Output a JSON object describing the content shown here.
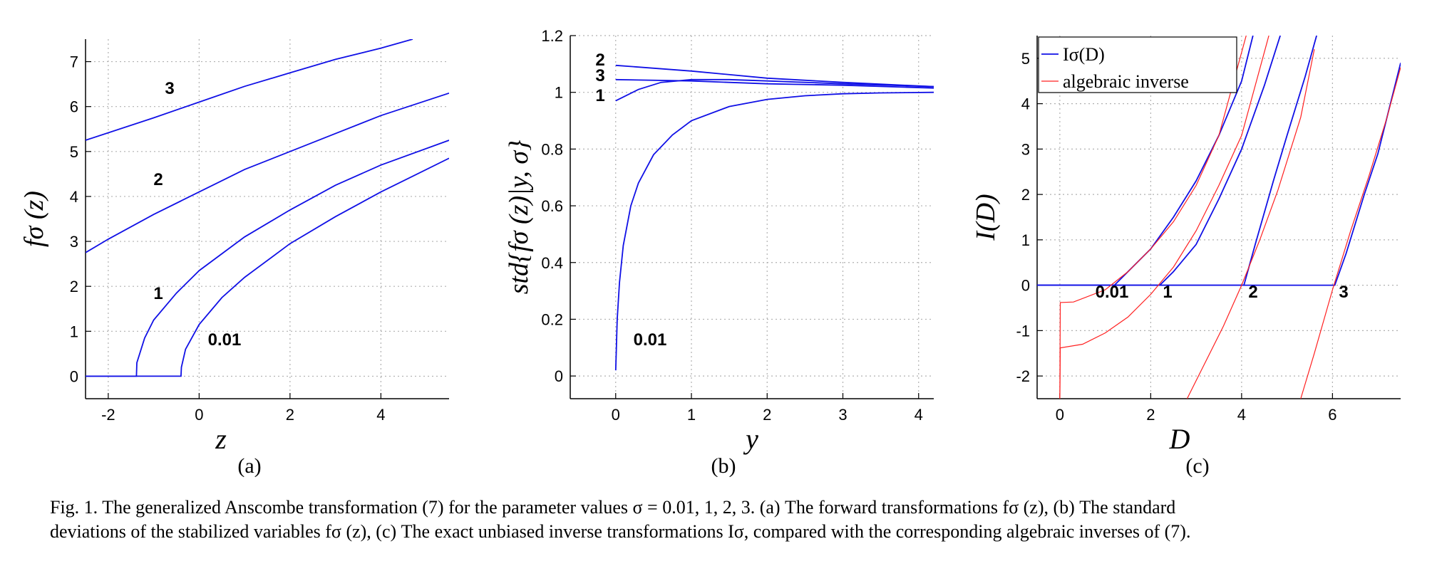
{
  "figure": {
    "panels": [
      {
        "id": "a",
        "label": "(a)",
        "xlabel": "z",
        "ylabel": "fσ (z)"
      },
      {
        "id": "b",
        "label": "(b)",
        "xlabel": "y",
        "ylabel": "std{fσ (z)|y, σ}"
      },
      {
        "id": "c",
        "label": "(c)",
        "xlabel": "D",
        "ylabel": "I(D)",
        "legend": [
          "Iσ(D)",
          "algebraic inverse"
        ]
      }
    ],
    "colors": {
      "curve": "#1010e6",
      "inverse": "#ff2020",
      "grid": "#b0b0b0"
    }
  },
  "chart_data": [
    {
      "type": "line",
      "panel": "a",
      "xlabel": "z",
      "ylabel": "fσ (z)",
      "xlim": [
        -2.5,
        5.5
      ],
      "ylim": [
        -0.5,
        7.5
      ],
      "xticks": [
        -2,
        0,
        2,
        4
      ],
      "yticks": [
        0,
        1,
        2,
        3,
        4,
        5,
        6,
        7
      ],
      "grid": true,
      "series": [
        {
          "name": "0.01",
          "x": [
            -2.5,
            -0.4,
            -0.39,
            -0.3,
            0,
            0.5,
            1,
            2,
            3,
            4,
            5.5
          ],
          "y": [
            0,
            0,
            0.2,
            0.6,
            1.15,
            1.75,
            2.2,
            2.95,
            3.55,
            4.1,
            4.85
          ]
        },
        {
          "name": "1",
          "x": [
            -2.5,
            -1.38,
            -1.37,
            -1.2,
            -1,
            -0.5,
            0,
            1,
            2,
            3,
            4,
            5.5
          ],
          "y": [
            0,
            0,
            0.3,
            0.85,
            1.25,
            1.85,
            2.35,
            3.1,
            3.7,
            4.25,
            4.7,
            5.25
          ]
        },
        {
          "name": "2",
          "x": [
            -2.5,
            -2,
            -1,
            0,
            1,
            2,
            3,
            4,
            5.5
          ],
          "y": [
            2.75,
            3.05,
            3.6,
            4.1,
            4.6,
            5.0,
            5.4,
            5.8,
            6.3
          ]
        },
        {
          "name": "3",
          "x": [
            -2.5,
            -1,
            0,
            1,
            2,
            3,
            4,
            4.7
          ],
          "y": [
            5.25,
            5.75,
            6.1,
            6.45,
            6.75,
            7.05,
            7.3,
            7.5
          ]
        }
      ],
      "annotations": [
        "3",
        "2",
        "1",
        "0.01"
      ]
    },
    {
      "type": "line",
      "panel": "b",
      "xlabel": "y",
      "ylabel": "std{fσ (z)|y, σ}",
      "xlim": [
        -0.6,
        4.2
      ],
      "ylim": [
        -0.08,
        1.2
      ],
      "xticks": [
        0,
        1,
        2,
        3,
        4
      ],
      "yticks": [
        0,
        0.2,
        0.4,
        0.6,
        0.8,
        1,
        1.2
      ],
      "grid": true,
      "series": [
        {
          "name": "0.01",
          "x": [
            0,
            0.02,
            0.05,
            0.1,
            0.2,
            0.3,
            0.5,
            0.75,
            1,
            1.5,
            2,
            2.5,
            3,
            3.5,
            4.2
          ],
          "y": [
            0.02,
            0.2,
            0.33,
            0.46,
            0.6,
            0.68,
            0.78,
            0.85,
            0.9,
            0.95,
            0.975,
            0.988,
            0.995,
            0.998,
            1.0
          ]
        },
        {
          "name": "1",
          "x": [
            0,
            0.3,
            0.6,
            1,
            1.5,
            2,
            3,
            4.2
          ],
          "y": [
            0.97,
            1.01,
            1.035,
            1.045,
            1.045,
            1.04,
            1.03,
            1.02
          ]
        },
        {
          "name": "2",
          "x": [
            0,
            1,
            2,
            3,
            4.2
          ],
          "y": [
            1.095,
            1.075,
            1.05,
            1.035,
            1.02
          ]
        },
        {
          "name": "3",
          "x": [
            0,
            1,
            2,
            3,
            4.2
          ],
          "y": [
            1.045,
            1.04,
            1.03,
            1.025,
            1.015
          ]
        }
      ],
      "annotations": [
        "2",
        "3",
        "1",
        "0.01"
      ]
    },
    {
      "type": "line",
      "panel": "c",
      "xlabel": "D",
      "ylabel": "I(D)",
      "xlim": [
        -0.5,
        7.5
      ],
      "ylim": [
        -2.5,
        5.5
      ],
      "xticks": [
        0,
        2,
        4,
        6
      ],
      "yticks": [
        -2,
        -1,
        0,
        1,
        2,
        3,
        4,
        5
      ],
      "grid": true,
      "legend": [
        "Iσ(D)",
        "algebraic inverse"
      ],
      "legend_position": "top-left",
      "series": [
        {
          "name": "Iσ(D) σ=0.01",
          "x": [
            -0.5,
            1.2,
            1.5,
            2,
            2.5,
            3,
            3.5,
            4.0,
            4.25
          ],
          "y": [
            0,
            0,
            0.3,
            0.8,
            1.5,
            2.3,
            3.3,
            4.5,
            5.5
          ]
        },
        {
          "name": "Iσ(D) σ=1",
          "x": [
            -0.5,
            2.2,
            2.5,
            3,
            3.5,
            4.0,
            4.5,
            4.85
          ],
          "y": [
            0,
            0,
            0.3,
            0.9,
            1.9,
            3.0,
            4.4,
            5.5
          ]
        },
        {
          "name": "Iσ(D) σ=2",
          "x": [
            -0.5,
            4.05,
            4.3,
            4.7,
            5.0,
            5.4,
            5.65
          ],
          "y": [
            0,
            0,
            0.9,
            2.3,
            3.3,
            4.6,
            5.5
          ]
        },
        {
          "name": "Iσ(D) σ=3",
          "x": [
            -0.5,
            6.05,
            6.3,
            6.7,
            7.0,
            7.5
          ],
          "y": [
            0,
            0,
            0.7,
            2.0,
            2.9,
            4.9
          ]
        },
        {
          "name": "algebraic inverse σ=0.01",
          "x": [
            0,
            0.01,
            0.3,
            1,
            1.5,
            2,
            2.5,
            3,
            3.5,
            4.1
          ],
          "y": [
            -2.5,
            -0.38,
            -0.37,
            -0.1,
            0.3,
            0.8,
            1.4,
            2.2,
            3.3,
            5.5
          ]
        },
        {
          "name": "algebraic inverse σ=1",
          "x": [
            0,
            0.01,
            0.5,
            1,
            1.5,
            2,
            2.5,
            3,
            3.5,
            4.0,
            4.6
          ],
          "y": [
            -2.5,
            -1.38,
            -1.3,
            -1.05,
            -0.7,
            -0.2,
            0.4,
            1.2,
            2.2,
            3.3,
            5.5
          ]
        },
        {
          "name": "algebraic inverse σ=2",
          "x": [
            2.8,
            3.2,
            3.6,
            4.0,
            4.4,
            4.8,
            5.3,
            5.6
          ],
          "y": [
            -2.5,
            -1.7,
            -0.9,
            0,
            1.0,
            2.1,
            3.7,
            5.2
          ]
        },
        {
          "name": "algebraic inverse σ=3",
          "x": [
            5.3,
            5.6,
            6.0,
            6.4,
            6.8,
            7.2,
            7.5
          ],
          "y": [
            -2.5,
            -1.5,
            -0.1,
            1.2,
            2.4,
            3.7,
            4.8
          ]
        }
      ],
      "annotations": [
        "0.01",
        "1",
        "2",
        "3"
      ]
    }
  ],
  "caption": {
    "line1": "Fig. 1.   The generalized Anscombe transformation (7) for the parameter values σ = 0.01, 1, 2, 3. (a) The forward transformations fσ (z), (b) The standard",
    "line2": "deviations of the stabilized variables fσ (z), (c) The exact unbiased inverse transformations Iσ, compared with the corresponding algebraic inverses of (7)."
  }
}
